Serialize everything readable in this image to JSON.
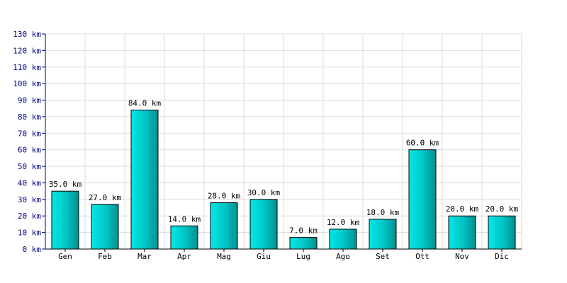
{
  "chart_data": {
    "type": "bar",
    "title": "",
    "xlabel": "",
    "ylabel": "",
    "unit": "km",
    "categories": [
      "Gen",
      "Feb",
      "Mar",
      "Apr",
      "Mag",
      "Giu",
      "Lug",
      "Ago",
      "Set",
      "Ott",
      "Nov",
      "Dic"
    ],
    "values": [
      35,
      27,
      84,
      14,
      28,
      30,
      7,
      12,
      18,
      60,
      20,
      20
    ],
    "data_labels": [
      "35.0 km",
      "27.0 km",
      "84.0 km",
      "14.0 km",
      "28.0 km",
      "30.0 km",
      "7.0 km",
      "12.0 km",
      "18.0 km",
      "60.0 km",
      "20.0 km",
      "20.0 km"
    ],
    "yticks": [
      "0 km",
      "10 km",
      "20 km",
      "30 km",
      "40 km",
      "50 km",
      "60 km",
      "70 km",
      "80 km",
      "90 km",
      "100 km",
      "110 km",
      "120 km",
      "130 km"
    ],
    "ylim": [
      0,
      130
    ],
    "grid": true,
    "bar_color": "#00b8b8"
  }
}
